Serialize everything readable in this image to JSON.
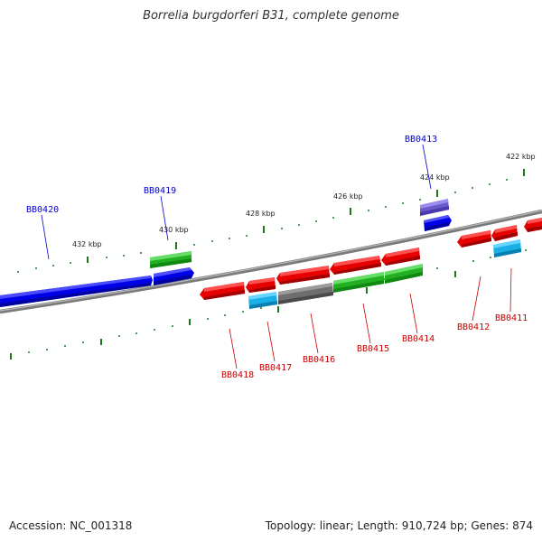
{
  "title": "Borrelia burgdorferi B31, complete genome",
  "footer": {
    "accession": "Accession: NC_001318",
    "summary": "Topology: linear; Length: 910,724 bp; Genes: 874"
  },
  "colors": {
    "forward_label": "#0000cc",
    "reverse_label": "#cc0000",
    "backbone": "#888888",
    "scale_ticks": "#1a7a1a"
  },
  "scale_labels": [
    "432 kbp",
    "430 kbp",
    "428 kbp",
    "426 kbp",
    "424 kbp",
    "422 kbp"
  ],
  "gene_labels": {
    "BB0420": "BB0420",
    "BB0419": "BB0419",
    "BB0413": "BB0413",
    "BB0418": "BB0418",
    "BB0417": "BB0417",
    "BB0416": "BB0416",
    "BB0415": "BB0415",
    "BB0414": "BB0414",
    "BB0412": "BB0412",
    "BB0411": "BB0411"
  }
}
